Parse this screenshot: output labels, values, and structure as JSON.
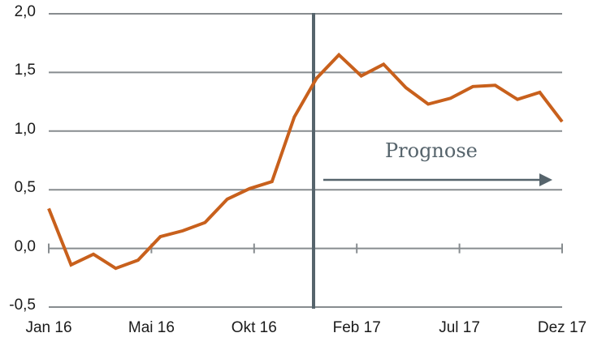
{
  "chart_data": {
    "type": "line",
    "title": "",
    "xlabel": "",
    "ylabel": "",
    "ylim": [
      -0.5,
      2.0
    ],
    "yticks": [
      "2,0",
      "1,5",
      "1,0",
      "0,5",
      "0,0",
      "-0,5"
    ],
    "xtick_labels": [
      "Jan 16",
      "Mai 16",
      "Okt 16",
      "Feb 17",
      "Jul 17",
      "Dez 17"
    ],
    "grid": "horizontal",
    "legend": "none",
    "annotation": {
      "text": "Prognose",
      "type": "arrow-right",
      "forecast_start": "Jan 17"
    },
    "x": [
      "Jan 16",
      "Feb 16",
      "Mär 16",
      "Apr 16",
      "Mai 16",
      "Jun 16",
      "Jul 16",
      "Aug 16",
      "Sep 16",
      "Okt 16",
      "Nov 16",
      "Dez 16",
      "Jan 17",
      "Feb 17",
      "Mär 17",
      "Apr 17",
      "Mai 17",
      "Jun 17",
      "Jul 17",
      "Aug 17",
      "Sep 17",
      "Okt 17",
      "Nov 17",
      "Dez 17"
    ],
    "series": [
      {
        "name": "",
        "color": "#c8601c",
        "values": [
          0.34,
          -0.14,
          -0.05,
          -0.17,
          -0.1,
          0.1,
          0.15,
          0.22,
          0.42,
          0.51,
          0.57,
          1.12,
          1.45,
          1.65,
          1.47,
          1.57,
          1.37,
          1.23,
          1.28,
          1.38,
          1.39,
          1.27,
          1.33,
          1.08
        ]
      }
    ]
  },
  "colors": {
    "line": "#c8601c",
    "grid": "#878c8f",
    "forecast": "#56646c"
  }
}
